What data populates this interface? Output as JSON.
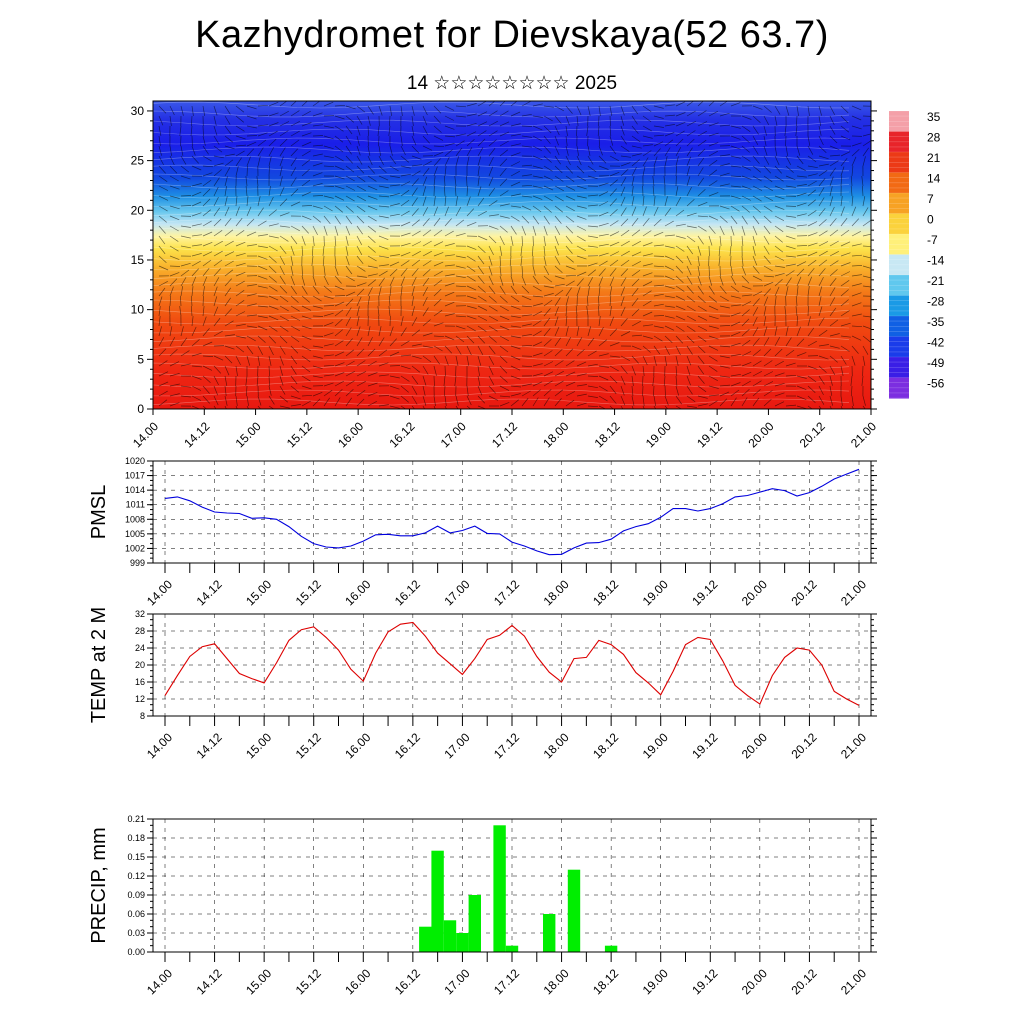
{
  "title": "Kazhydromet for Dievskaya(52 63.7)",
  "subtitle": "14 ☆☆☆☆☆☆☆☆ 2025",
  "colors": {
    "pmsl_line": "#0000dd",
    "temp_line": "#dd0000",
    "precip_bar": "#00ee00",
    "frame": "#000000"
  },
  "chart_data": [
    {
      "type": "heatmap",
      "title": "",
      "xlabel": "",
      "ylabel": "",
      "x_ticks": [
        "14.00",
        "14.12",
        "15.00",
        "15.12",
        "16.00",
        "16.12",
        "17.00",
        "17.12",
        "18.00",
        "18.12",
        "19.00",
        "19.12",
        "20.00",
        "20.12",
        "21.00"
      ],
      "y_ticks": [
        "0",
        "5",
        "10",
        "15",
        "20",
        "25",
        "30"
      ],
      "ylim": [
        0,
        31
      ],
      "overlay": "wind barbs",
      "colorbar_labels": [
        "35",
        "28",
        "21",
        "14",
        "7",
        "0",
        "-7",
        "-14",
        "-21",
        "-28",
        "-35",
        "-42",
        "-49",
        "-56"
      ],
      "colorbar_colors": [
        "#f4a0a8",
        "#e8242a",
        "#ec3a16",
        "#f26a14",
        "#f7a224",
        "#fbd23c",
        "#fff07a",
        "#c8e8f4",
        "#60c8ee",
        "#1a9ae6",
        "#1060e4",
        "#1a3cea",
        "#3a1ee6",
        "#7c2ee0"
      ]
    },
    {
      "type": "line",
      "ylabel": "PMSL",
      "ylim": [
        999,
        1020
      ],
      "y_ticks": [
        "999",
        "1002",
        "1005",
        "1008",
        "1011",
        "1014",
        "1017",
        "1020"
      ],
      "x_ticks": [
        "14.00",
        "14.12",
        "15.00",
        "15.12",
        "16.00",
        "16.12",
        "17.00",
        "17.12",
        "18.00",
        "18.12",
        "19.00",
        "19.12",
        "20.00",
        "20.12",
        "21.00"
      ],
      "x": [
        0,
        3,
        6,
        9,
        12,
        15,
        18,
        21,
        24,
        27,
        30,
        33,
        36,
        39,
        42,
        45,
        48,
        51,
        54,
        57,
        60,
        63,
        66,
        69,
        72,
        75,
        78,
        81,
        84,
        87,
        90,
        93,
        96,
        99,
        102,
        105,
        108,
        111,
        114,
        117,
        120,
        123,
        126,
        129,
        132,
        135,
        138,
        141,
        144,
        147,
        150,
        153,
        156,
        159,
        162,
        165,
        168
      ],
      "series": [
        {
          "values": [
            1012.3,
            1012.6,
            1011.8,
            1010.5,
            1009.5,
            1009.3,
            1009.2,
            1008.2,
            1008.3,
            1008.0,
            1006.5,
            1004.5,
            1003.0,
            1002.3,
            1002.1,
            1002.5,
            1003.5,
            1004.8,
            1004.9,
            1004.6,
            1004.6,
            1005.2,
            1006.6,
            1005.2,
            1005.7,
            1006.6,
            1005.1,
            1005.0,
            1003.3,
            1002.5,
            1001.5,
            1000.7,
            1000.8,
            1002.1,
            1003.1,
            1003.2,
            1003.9,
            1005.6,
            1006.5,
            1007.1,
            1008.4,
            1010.2,
            1010.2,
            1009.7,
            1010.2,
            1011.2,
            1012.6,
            1012.9,
            1013.6,
            1014.3,
            1013.9,
            1012.8,
            1013.5,
            1014.8,
            1016.3,
            1017.3,
            1018.3
          ]
        }
      ]
    },
    {
      "type": "line",
      "ylabel": "TEMP at 2 M",
      "ylim": [
        8,
        32
      ],
      "y_ticks": [
        "8",
        "12",
        "16",
        "20",
        "24",
        "28",
        "32"
      ],
      "x_ticks": [
        "14.00",
        "14.12",
        "15.00",
        "15.12",
        "16.00",
        "16.12",
        "17.00",
        "17.12",
        "18.00",
        "18.12",
        "19.00",
        "19.12",
        "20.00",
        "20.12",
        "21.00"
      ],
      "x": [
        0,
        3,
        6,
        9,
        12,
        15,
        18,
        21,
        24,
        27,
        30,
        33,
        36,
        39,
        42,
        45,
        48,
        51,
        54,
        57,
        60,
        63,
        66,
        69,
        72,
        75,
        78,
        81,
        84,
        87,
        90,
        93,
        96,
        99,
        102,
        105,
        108,
        111,
        114,
        117,
        120,
        123,
        126,
        129,
        132,
        135,
        138,
        141,
        144,
        147,
        150,
        153,
        156,
        159,
        162,
        165,
        168
      ],
      "series": [
        {
          "values": [
            12.8,
            17.5,
            22.0,
            24.3,
            25.0,
            21.5,
            18.0,
            16.8,
            15.8,
            20.5,
            25.8,
            28.3,
            29.0,
            26.5,
            23.5,
            19.0,
            16.2,
            22.8,
            27.8,
            29.6,
            30.0,
            26.8,
            22.8,
            20.3,
            17.8,
            21.5,
            26.0,
            27.0,
            29.3,
            26.8,
            22.0,
            18.3,
            16.0,
            21.5,
            21.8,
            25.8,
            24.8,
            22.5,
            18.2,
            15.8,
            13.0,
            18.5,
            24.8,
            26.5,
            26.0,
            21.0,
            15.2,
            12.8,
            10.8,
            17.5,
            21.8,
            24.0,
            23.5,
            20.0,
            13.8,
            12.0,
            10.5
          ]
        }
      ]
    },
    {
      "type": "bar",
      "ylabel": "PRECIP, mm",
      "ylim": [
        0,
        0.21
      ],
      "y_ticks": [
        "0.00",
        "0.03",
        "0.06",
        "0.09",
        "0.12",
        "0.15",
        "0.18",
        "0.21"
      ],
      "x_ticks": [
        "14.00",
        "14.12",
        "15.00",
        "15.12",
        "16.00",
        "16.12",
        "17.00",
        "17.12",
        "18.00",
        "18.12",
        "19.00",
        "19.12",
        "20.00",
        "20.12",
        "21.00"
      ],
      "x": [
        63,
        66,
        69,
        72,
        75,
        81,
        84,
        93,
        99
      ],
      "values": [
        0.04,
        0.16,
        0.05,
        0.03,
        0.09,
        0.2,
        0.01,
        0.06,
        0.13
      ],
      "extra": {
        "x": [
          108
        ],
        "values": [
          0.01
        ]
      }
    }
  ]
}
